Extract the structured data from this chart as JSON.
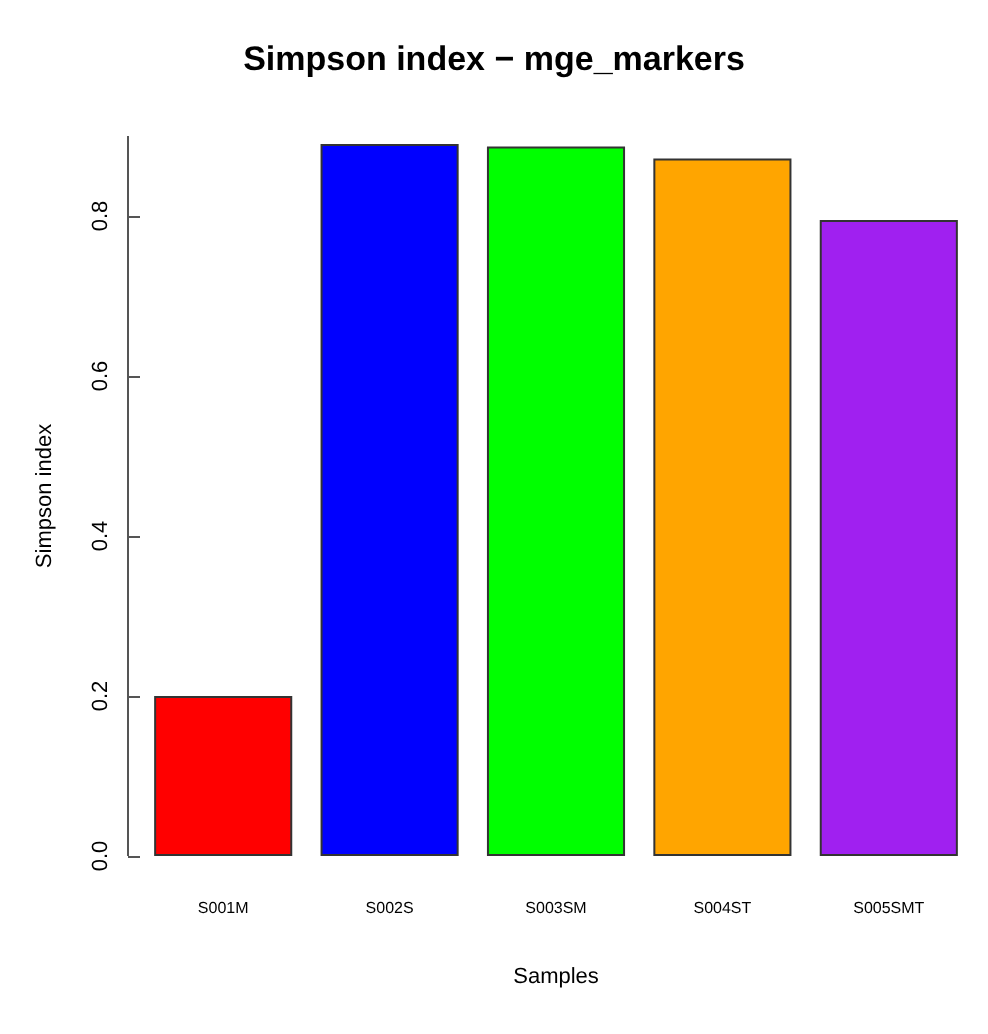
{
  "chart_data": {
    "type": "bar",
    "title": "Simpson index − mge_markers",
    "xlabel": "Samples",
    "ylabel": "Simpson index",
    "categories": [
      "S001M",
      "S002S",
      "S003SM",
      "S004ST",
      "S005SMT"
    ],
    "values": [
      0.2,
      0.89,
      0.887,
      0.872,
      0.795
    ],
    "colors": [
      "#ff0000",
      "#0000ff",
      "#00ff00",
      "#ffa500",
      "#a020f0"
    ],
    "ylim": [
      0,
      0.9
    ],
    "yticks": [
      {
        "value": 0,
        "label": "0.0"
      },
      {
        "value": 0.2,
        "label": "0.2"
      },
      {
        "value": 0.4,
        "label": "0.4"
      },
      {
        "value": 0.6,
        "label": "0.6"
      },
      {
        "value": 0.8,
        "label": "0.8"
      }
    ],
    "grid": false
  }
}
